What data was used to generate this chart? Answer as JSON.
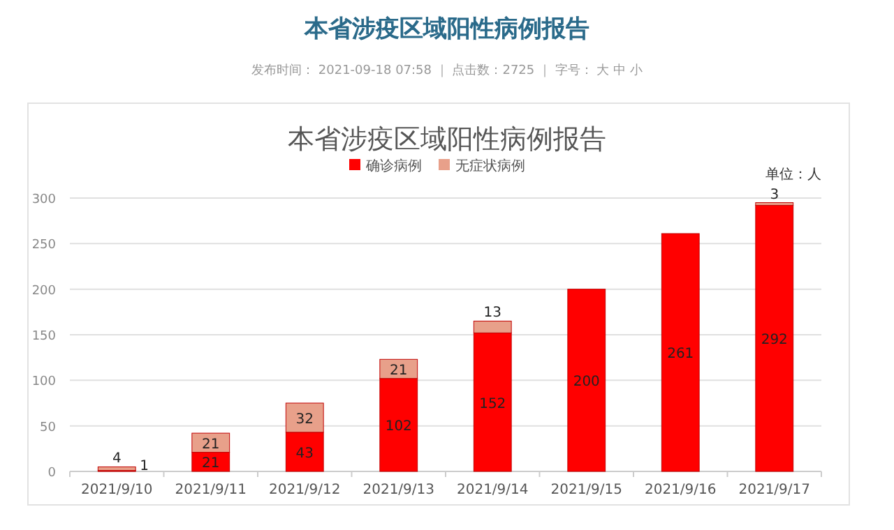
{
  "chart_data": {
    "type": "bar",
    "title": "本省涉疫区域阳性病例报告",
    "annotations": [
      "本省涉疫区域阳性病例报告",
      "发布时间： 2021-09-18 07:58 ｜ 点击数：2725 ｜ 字号： 大 中 小",
      "单位：人"
    ],
    "categories": [
      "2021/9/10",
      "2021/9/11",
      "2021/9/12",
      "2021/9/13",
      "2021/9/14",
      "2021/9/15",
      "2021/9/16",
      "2021/9/17"
    ],
    "series": [
      {
        "name": "确诊病例",
        "color": "#ff0000",
        "values": [
          1,
          21,
          43,
          102,
          152,
          200,
          261,
          292
        ]
      },
      {
        "name": "无症状病例",
        "color": "#e8a08a",
        "values": [
          4,
          21,
          32,
          21,
          13,
          null,
          null,
          3
        ]
      }
    ],
    "stacked": true,
    "data_labels": true,
    "ylim": [
      0,
      300
    ],
    "yticks": [
      0,
      50,
      100,
      150,
      200,
      250,
      300
    ],
    "grid": "y",
    "legend": "top"
  }
}
